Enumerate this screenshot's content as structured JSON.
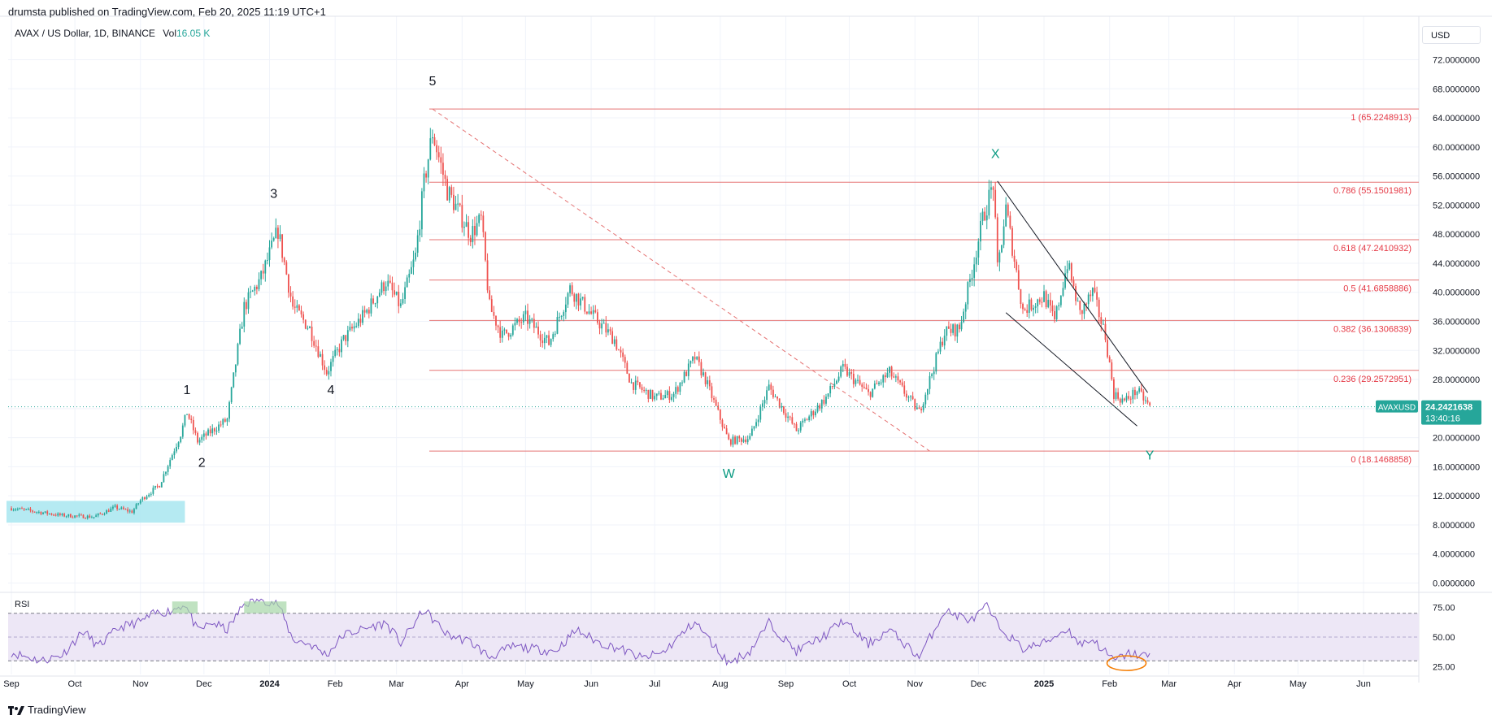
{
  "header": {
    "published_by": "drumsta published on TradingView.com, Feb 20, 2025 11:19 UTC+1"
  },
  "legend": {
    "symbol": "AVAX / US Dollar, 1D, BINANCE",
    "vol_label": "Vol",
    "vol_value": "16.05 K"
  },
  "currency_button": "USD",
  "brand": "TradingView",
  "colors": {
    "up": "#26a69a",
    "down": "#ef5350",
    "fib_line": "#e57373",
    "fib_text": "#e53945",
    "rsi_line": "#7e57c2",
    "rsi_band": "#ede7f6",
    "wave_label_green": "#089981",
    "orange_ellipse": "#f57c00",
    "highlight_box": "#a8e6f0"
  },
  "chart_data": {
    "type": "candlestick",
    "price_axis": {
      "ylim": [
        0,
        75
      ],
      "ticks": [
        "72.0000000",
        "68.0000000",
        "64.0000000",
        "60.0000000",
        "56.0000000",
        "52.0000000",
        "48.0000000",
        "44.0000000",
        "40.0000000",
        "36.0000000",
        "32.0000000",
        "28.0000000",
        "24.0000000",
        "20.0000000",
        "16.0000000",
        "12.0000000",
        "8.0000000",
        "4.0000000",
        "0.0000000"
      ],
      "tick_values": [
        72,
        68,
        64,
        60,
        56,
        52,
        48,
        44,
        40,
        36,
        32,
        28,
        24,
        20,
        16,
        12,
        8,
        4,
        0
      ]
    },
    "time_axis": {
      "labels": [
        "Sep",
        "Oct",
        "Nov",
        "Dec",
        "2024",
        "Feb",
        "Mar",
        "Apr",
        "May",
        "Jun",
        "Jul",
        "Aug",
        "Sep",
        "Oct",
        "Nov",
        "Dec",
        "2025",
        "Feb",
        "Mar",
        "Apr",
        "May",
        "Jun"
      ],
      "bold": [
        "2024",
        "2025"
      ]
    },
    "price_path": [
      {
        "date": "2023-09-01",
        "close": 10.3
      },
      {
        "date": "2023-09-25",
        "close": 9.3
      },
      {
        "date": "2023-10-10",
        "close": 9.1
      },
      {
        "date": "2023-10-20",
        "close": 10.4
      },
      {
        "date": "2023-10-28",
        "close": 9.8
      },
      {
        "date": "2023-11-01",
        "close": 11.4
      },
      {
        "date": "2023-11-10",
        "close": 13.5
      },
      {
        "date": "2023-11-20",
        "close": 20.5
      },
      {
        "date": "2023-11-23",
        "close": 23.5
      },
      {
        "date": "2023-11-28",
        "close": 19.5
      },
      {
        "date": "2023-12-05",
        "close": 21.0
      },
      {
        "date": "2023-12-12",
        "close": 22.5
      },
      {
        "date": "2023-12-20",
        "close": 38.0
      },
      {
        "date": "2023-12-28",
        "close": 42.0
      },
      {
        "date": "2024-01-05",
        "close": 48.5
      },
      {
        "date": "2024-01-12",
        "close": 38.0
      },
      {
        "date": "2024-01-20",
        "close": 35.0
      },
      {
        "date": "2024-01-28",
        "close": 29.0
      },
      {
        "date": "2024-02-05",
        "close": 33.5
      },
      {
        "date": "2024-02-15",
        "close": 37.0
      },
      {
        "date": "2024-02-25",
        "close": 41.5
      },
      {
        "date": "2024-03-03",
        "close": 38.0
      },
      {
        "date": "2024-03-10",
        "close": 45.0
      },
      {
        "date": "2024-03-14",
        "close": 55.0
      },
      {
        "date": "2024-03-18",
        "close": 62.0
      },
      {
        "date": "2024-03-25",
        "close": 54.0
      },
      {
        "date": "2024-04-05",
        "close": 48.0
      },
      {
        "date": "2024-04-10",
        "close": 50.0
      },
      {
        "date": "2024-04-14",
        "close": 38.0
      },
      {
        "date": "2024-04-20",
        "close": 34.0
      },
      {
        "date": "2024-05-01",
        "close": 36.5
      },
      {
        "date": "2024-05-12",
        "close": 33.0
      },
      {
        "date": "2024-05-22",
        "close": 40.5
      },
      {
        "date": "2024-06-01",
        "close": 37.0
      },
      {
        "date": "2024-06-12",
        "close": 33.5
      },
      {
        "date": "2024-06-20",
        "close": 27.5
      },
      {
        "date": "2024-07-01",
        "close": 25.5
      },
      {
        "date": "2024-07-10",
        "close": 26.0
      },
      {
        "date": "2024-07-20",
        "close": 31.0
      },
      {
        "date": "2024-07-25",
        "close": 28.0
      },
      {
        "date": "2024-08-05",
        "close": 19.5
      },
      {
        "date": "2024-08-15",
        "close": 20.0
      },
      {
        "date": "2024-08-24",
        "close": 27.0
      },
      {
        "date": "2024-09-06",
        "close": 21.0
      },
      {
        "date": "2024-09-20",
        "close": 25.5
      },
      {
        "date": "2024-09-28",
        "close": 29.5
      },
      {
        "date": "2024-10-10",
        "close": 26.0
      },
      {
        "date": "2024-10-20",
        "close": 29.0
      },
      {
        "date": "2024-11-03",
        "close": 23.5
      },
      {
        "date": "2024-11-08",
        "close": 28.0
      },
      {
        "date": "2024-11-15",
        "close": 34.5
      },
      {
        "date": "2024-11-22",
        "close": 35.0
      },
      {
        "date": "2024-11-28",
        "close": 43.0
      },
      {
        "date": "2024-12-03",
        "close": 50.0
      },
      {
        "date": "2024-12-08",
        "close": 55.0
      },
      {
        "date": "2024-12-10",
        "close": 43.0
      },
      {
        "date": "2024-12-14",
        "close": 51.5
      },
      {
        "date": "2024-12-22",
        "close": 37.5
      },
      {
        "date": "2025-01-01",
        "close": 39.5
      },
      {
        "date": "2025-01-06",
        "close": 36.0
      },
      {
        "date": "2025-01-12",
        "close": 44.0
      },
      {
        "date": "2025-01-18",
        "close": 37.0
      },
      {
        "date": "2025-01-24",
        "close": 40.0
      },
      {
        "date": "2025-01-30",
        "close": 34.0
      },
      {
        "date": "2025-02-03",
        "close": 26.0
      },
      {
        "date": "2025-02-08",
        "close": 25.0
      },
      {
        "date": "2025-02-14",
        "close": 26.5
      },
      {
        "date": "2025-02-20",
        "close": 24.24
      }
    ],
    "fib_levels": [
      {
        "label": "1 (65.2248913)",
        "value": 65.2248913
      },
      {
        "label": "0.786 (55.1501981)",
        "value": 55.1501981
      },
      {
        "label": "0.618 (47.2410932)",
        "value": 47.2410932
      },
      {
        "label": "0.5 (41.6858886)",
        "value": 41.6858886
      },
      {
        "label": "0.382 (36.1306839)",
        "value": 36.1306839
      },
      {
        "label": "0.236 (29.2572951)",
        "value": 29.2572951
      },
      {
        "label": "0 (18.1468858)",
        "value": 18.1468858
      }
    ],
    "wave_labels": [
      {
        "text": "1",
        "date": "2023-11-23",
        "price": 26.0,
        "color": "black"
      },
      {
        "text": "2",
        "date": "2023-11-30",
        "price": 16.0,
        "color": "black"
      },
      {
        "text": "3",
        "date": "2024-01-03",
        "price": 53.0,
        "color": "black"
      },
      {
        "text": "4",
        "date": "2024-01-30",
        "price": 26.0,
        "color": "black"
      },
      {
        "text": "5",
        "date": "2024-03-18",
        "price": 68.5,
        "color": "black"
      },
      {
        "text": "W",
        "date": "2024-08-05",
        "price": 14.5,
        "color": "green"
      },
      {
        "text": "X",
        "date": "2024-12-09",
        "price": 58.5,
        "color": "green"
      },
      {
        "text": "Y",
        "date": "2025-02-20",
        "price": 17.0,
        "color": "green"
      }
    ],
    "current_price": {
      "symbol": "AVAXUSD",
      "value": "24.2421638",
      "countdown": "13:40:16"
    },
    "rsi": {
      "label": "RSI",
      "ylim": [
        20,
        80
      ],
      "ticks": [
        "75.00",
        "50.00",
        "25.00"
      ],
      "tick_values": [
        75,
        50,
        25
      ],
      "band": [
        30,
        70
      ],
      "path": [
        {
          "date": "2023-09-01",
          "v": 37
        },
        {
          "date": "2023-09-15",
          "v": 30
        },
        {
          "date": "2023-09-25",
          "v": 35
        },
        {
          "date": "2023-10-05",
          "v": 55
        },
        {
          "date": "2023-10-12",
          "v": 42
        },
        {
          "date": "2023-10-22",
          "v": 58
        },
        {
          "date": "2023-11-01",
          "v": 63
        },
        {
          "date": "2023-11-08",
          "v": 70
        },
        {
          "date": "2023-11-15",
          "v": 72
        },
        {
          "date": "2023-11-22",
          "v": 78
        },
        {
          "date": "2023-11-28",
          "v": 55
        },
        {
          "date": "2023-12-05",
          "v": 62
        },
        {
          "date": "2023-12-12",
          "v": 56
        },
        {
          "date": "2023-12-20",
          "v": 78
        },
        {
          "date": "2023-12-28",
          "v": 82
        },
        {
          "date": "2024-01-05",
          "v": 78
        },
        {
          "date": "2024-01-12",
          "v": 48
        },
        {
          "date": "2024-01-20",
          "v": 44
        },
        {
          "date": "2024-01-28",
          "v": 35
        },
        {
          "date": "2024-02-05",
          "v": 52
        },
        {
          "date": "2024-02-15",
          "v": 57
        },
        {
          "date": "2024-02-25",
          "v": 62
        },
        {
          "date": "2024-03-03",
          "v": 45
        },
        {
          "date": "2024-03-14",
          "v": 73
        },
        {
          "date": "2024-03-25",
          "v": 52
        },
        {
          "date": "2024-04-05",
          "v": 46
        },
        {
          "date": "2024-04-14",
          "v": 33
        },
        {
          "date": "2024-04-25",
          "v": 42
        },
        {
          "date": "2024-05-05",
          "v": 40
        },
        {
          "date": "2024-05-15",
          "v": 38
        },
        {
          "date": "2024-05-25",
          "v": 56
        },
        {
          "date": "2024-06-05",
          "v": 45
        },
        {
          "date": "2024-06-15",
          "v": 40
        },
        {
          "date": "2024-06-25",
          "v": 32
        },
        {
          "date": "2024-07-05",
          "v": 37
        },
        {
          "date": "2024-07-20",
          "v": 63
        },
        {
          "date": "2024-07-28",
          "v": 45
        },
        {
          "date": "2024-08-05",
          "v": 28
        },
        {
          "date": "2024-08-15",
          "v": 38
        },
        {
          "date": "2024-08-24",
          "v": 62
        },
        {
          "date": "2024-09-06",
          "v": 38
        },
        {
          "date": "2024-09-20",
          "v": 52
        },
        {
          "date": "2024-09-28",
          "v": 64
        },
        {
          "date": "2024-10-10",
          "v": 44
        },
        {
          "date": "2024-10-20",
          "v": 56
        },
        {
          "date": "2024-11-03",
          "v": 33
        },
        {
          "date": "2024-11-15",
          "v": 72
        },
        {
          "date": "2024-11-28",
          "v": 64
        },
        {
          "date": "2024-12-05",
          "v": 76
        },
        {
          "date": "2024-12-10",
          "v": 60
        },
        {
          "date": "2024-12-22",
          "v": 40
        },
        {
          "date": "2025-01-01",
          "v": 45
        },
        {
          "date": "2025-01-12",
          "v": 57
        },
        {
          "date": "2025-01-18",
          "v": 44
        },
        {
          "date": "2025-01-24",
          "v": 48
        },
        {
          "date": "2025-02-03",
          "v": 30
        },
        {
          "date": "2025-02-10",
          "v": 36
        },
        {
          "date": "2025-02-20",
          "v": 34
        }
      ]
    }
  }
}
